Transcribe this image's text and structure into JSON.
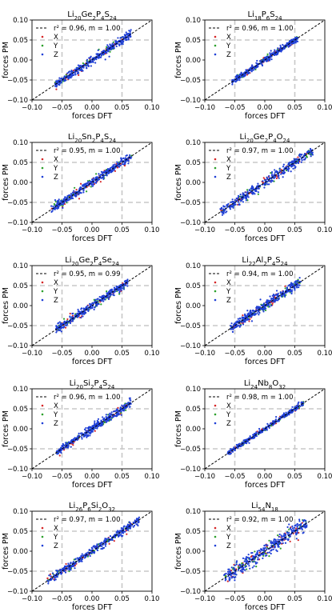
{
  "figure": {
    "background": "#ffffff"
  },
  "colors": {
    "X": "#d62728",
    "Y": "#2ca02c",
    "Z": "#1f3fd6",
    "diagonal": "#000000",
    "grid": "#c8c8c8"
  },
  "chart_data": [
    {
      "type": "scatter",
      "title": "Li<sub>20</sub>Ge<sub>2</sub>P<sub>4</sub>S<sub>24</sub>",
      "title_plain": "Li20Ge2P4S24",
      "xlabel": "forces DFT",
      "ylabel": "forces PM",
      "xlim": [
        -0.1,
        0.1
      ],
      "ylim": [
        -0.1,
        0.1
      ],
      "xticks": [
        "−0.10",
        "−0.05",
        "0.00",
        "0.05",
        "0.10"
      ],
      "yticks": [
        "−0.10",
        "−0.05",
        "0.00",
        "0.05",
        "0.10"
      ],
      "grid": "dashed at ±0.05",
      "legend_loc": "upper-left",
      "legend": [
        "r² = 0.96, m = 1.00",
        "X",
        "Y",
        "Z"
      ],
      "r2": 0.96,
      "m": 1.0,
      "extent": [
        -0.062,
        0.065
      ],
      "spread": 0.005,
      "series": [
        "X",
        "Y",
        "Z"
      ]
    },
    {
      "type": "scatter",
      "title": "Li<sub>18</sub>P<sub>6</sub>S<sub>24</sub>",
      "title_plain": "Li18P6S24",
      "xlabel": "forces DFT",
      "ylabel": "forces PM",
      "xlim": [
        -0.1,
        0.1
      ],
      "ylim": [
        -0.1,
        0.1
      ],
      "xticks": [
        "−0.10",
        "−0.05",
        "0.00",
        "0.05",
        "0.10"
      ],
      "yticks": [
        "−0.10",
        "−0.05",
        "0.00",
        "0.05",
        "0.10"
      ],
      "grid": "dashed at ±0.05",
      "legend_loc": "upper-left",
      "legend": [
        "r² = 0.96, m = 1.00",
        "X",
        "Y",
        "Z"
      ],
      "r2": 0.96,
      "m": 1.0,
      "extent": [
        -0.055,
        0.055
      ],
      "spread": 0.004,
      "series": [
        "X",
        "Y",
        "Z"
      ]
    },
    {
      "type": "scatter",
      "title": "Li<sub>20</sub>Sn<sub>2</sub>P<sub>4</sub>S<sub>24</sub>",
      "title_plain": "Li20Sn2P4S24",
      "xlabel": "forces DFT",
      "ylabel": "forces PM",
      "xlim": [
        -0.1,
        0.1
      ],
      "ylim": [
        -0.1,
        0.1
      ],
      "xticks": [
        "−0.10",
        "−0.05",
        "0.00",
        "0.05",
        "0.10"
      ],
      "yticks": [
        "−0.10",
        "−0.05",
        "0.00",
        "0.05",
        "0.10"
      ],
      "grid": "dashed at ±0.05",
      "legend_loc": "upper-left",
      "legend": [
        "r² = 0.95, m = 1.00",
        "X",
        "Y",
        "Z"
      ],
      "r2": 0.95,
      "m": 1.0,
      "extent": [
        -0.068,
        0.068
      ],
      "spread": 0.005,
      "series": [
        "X",
        "Y",
        "Z"
      ]
    },
    {
      "type": "scatter",
      "title": "Li<sub>20</sub>Ge<sub>2</sub>P<sub>4</sub>O<sub>24</sub>",
      "title_plain": "Li20Ge2P4O24",
      "xlabel": "forces DFT",
      "ylabel": "forces PM",
      "xlim": [
        -0.1,
        0.1
      ],
      "ylim": [
        -0.1,
        0.1
      ],
      "xticks": [
        "−0.10",
        "−0.05",
        "0.00",
        "0.05",
        "0.10"
      ],
      "yticks": [
        "−0.10",
        "−0.05",
        "0.00",
        "0.05",
        "0.10"
      ],
      "grid": "dashed at ±0.05",
      "legend_loc": "upper-left",
      "legend": [
        "r² = 0.97, m = 1.00",
        "X",
        "Y",
        "Z"
      ],
      "r2": 0.97,
      "m": 1.0,
      "extent": [
        -0.075,
        0.08
      ],
      "spread": 0.006,
      "series": [
        "X",
        "Y",
        "Z"
      ]
    },
    {
      "type": "scatter",
      "title": "Li<sub>20</sub>Ge<sub>2</sub>P<sub>4</sub>Se<sub>24</sub>",
      "title_plain": "Li20Ge2P4Se24",
      "xlabel": "forces DFT",
      "ylabel": "forces PM",
      "xlim": [
        -0.1,
        0.1
      ],
      "ylim": [
        -0.1,
        0.1
      ],
      "xticks": [
        "−0.10",
        "−0.05",
        "0.00",
        "0.05",
        "0.10"
      ],
      "yticks": [
        "−0.10",
        "−0.05",
        "0.00",
        "0.05",
        "0.10"
      ],
      "grid": "dashed at ±0.05",
      "legend_loc": "upper-left",
      "legend": [
        "r² = 0.95, m = 0.99",
        "X",
        "Y",
        "Z"
      ],
      "r2": 0.95,
      "m": 0.99,
      "extent": [
        -0.06,
        0.06
      ],
      "spread": 0.005,
      "series": [
        "X",
        "Y",
        "Z"
      ]
    },
    {
      "type": "scatter",
      "title": "Li<sub>22</sub>Al<sub>2</sub>P<sub>4</sub>S<sub>24</sub>",
      "title_plain": "Li22Al2P4S24",
      "xlabel": "forces DFT",
      "ylabel": "forces PM",
      "xlim": [
        -0.1,
        0.1
      ],
      "ylim": [
        -0.1,
        0.1
      ],
      "xticks": [
        "−0.10",
        "−0.05",
        "0.00",
        "0.05",
        "0.10"
      ],
      "yticks": [
        "−0.10",
        "−0.05",
        "0.00",
        "0.05",
        "0.10"
      ],
      "grid": "dashed at ±0.05",
      "legend_loc": "upper-left",
      "legend": [
        "r² = 0.94, m = 1.00",
        "X",
        "Y",
        "Z"
      ],
      "r2": 0.94,
      "m": 1.0,
      "extent": [
        -0.058,
        0.06
      ],
      "spread": 0.006,
      "series": [
        "X",
        "Y",
        "Z"
      ]
    },
    {
      "type": "scatter",
      "title": "Li<sub>20</sub>Si<sub>2</sub>P<sub>4</sub>S<sub>24</sub>",
      "title_plain": "Li20Si2P4S24",
      "xlabel": "forces DFT",
      "ylabel": "forces PM",
      "xlim": [
        -0.1,
        0.1
      ],
      "ylim": [
        -0.1,
        0.1
      ],
      "xticks": [
        "−0.10",
        "−0.05",
        "0.00",
        "0.05",
        "0.10"
      ],
      "yticks": [
        "−0.10",
        "−0.05",
        "0.00",
        "0.05",
        "0.10"
      ],
      "grid": "dashed at ±0.05",
      "legend_loc": "upper-left",
      "legend": [
        "r² = 0.96, m = 1.00",
        "X",
        "Y",
        "Z"
      ],
      "r2": 0.96,
      "m": 1.0,
      "extent": [
        -0.06,
        0.065
      ],
      "spread": 0.005,
      "series": [
        "X",
        "Y",
        "Z"
      ]
    },
    {
      "type": "scatter",
      "title": "Li<sub>24</sub>Nb<sub>8</sub>O<sub>32</sub>",
      "title_plain": "Li24Nb8O32",
      "xlabel": "forces DFT",
      "ylabel": "forces PM",
      "xlim": [
        -0.1,
        0.1
      ],
      "ylim": [
        -0.1,
        0.1
      ],
      "xticks": [
        "−0.10",
        "−0.05",
        "0.00",
        "0.05",
        "0.10"
      ],
      "yticks": [
        "−0.10",
        "−0.05",
        "0.00",
        "0.05",
        "0.10"
      ],
      "grid": "dashed at ±0.05",
      "legend_loc": "upper-left",
      "legend": [
        "r² = 0.98, m = 1.00",
        "X",
        "Y",
        "Z"
      ],
      "r2": 0.98,
      "m": 1.0,
      "extent": [
        -0.062,
        0.065
      ],
      "spread": 0.003,
      "series": [
        "X",
        "Y",
        "Z"
      ]
    },
    {
      "type": "scatter",
      "title": "Li<sub>26</sub>P<sub>6</sub>Si<sub>2</sub>O<sub>32</sub>",
      "title_plain": "Li26P6Si2O32",
      "xlabel": "forces DFT",
      "ylabel": "forces PM",
      "xlim": [
        -0.1,
        0.1
      ],
      "ylim": [
        -0.1,
        0.1
      ],
      "xticks": [
        "−0.10",
        "−0.05",
        "0.00",
        "0.05",
        "0.10"
      ],
      "yticks": [
        "−0.10",
        "−0.05",
        "0.00",
        "0.05",
        "0.10"
      ],
      "grid": "dashed at ±0.05",
      "legend_loc": "upper-left",
      "legend": [
        "r² = 0.97, m = 1.00",
        "X",
        "Y",
        "Z"
      ],
      "r2": 0.97,
      "m": 1.0,
      "extent": [
        -0.075,
        0.08
      ],
      "spread": 0.005,
      "series": [
        "X",
        "Y",
        "Z"
      ]
    },
    {
      "type": "scatter",
      "title": "Li<sub>54</sub>N<sub>18</sub>",
      "title_plain": "Li54N18",
      "xlabel": "forces DFT",
      "ylabel": "forces PM",
      "xlim": [
        -0.1,
        0.1
      ],
      "ylim": [
        -0.1,
        0.1
      ],
      "xticks": [
        "−0.10",
        "−0.05",
        "0.00",
        "0.05",
        "0.10"
      ],
      "yticks": [
        "−0.10",
        "−0.05",
        "0.00",
        "0.05",
        "0.10"
      ],
      "grid": "dashed at ±0.05",
      "legend_loc": "upper-left",
      "legend": [
        "r² = 0.92, m = 1.00",
        "X",
        "Y",
        "Z"
      ],
      "r2": 0.92,
      "m": 1.0,
      "extent": [
        -0.068,
        0.07
      ],
      "spread": 0.009,
      "series": [
        "X",
        "Y",
        "Z"
      ]
    }
  ]
}
